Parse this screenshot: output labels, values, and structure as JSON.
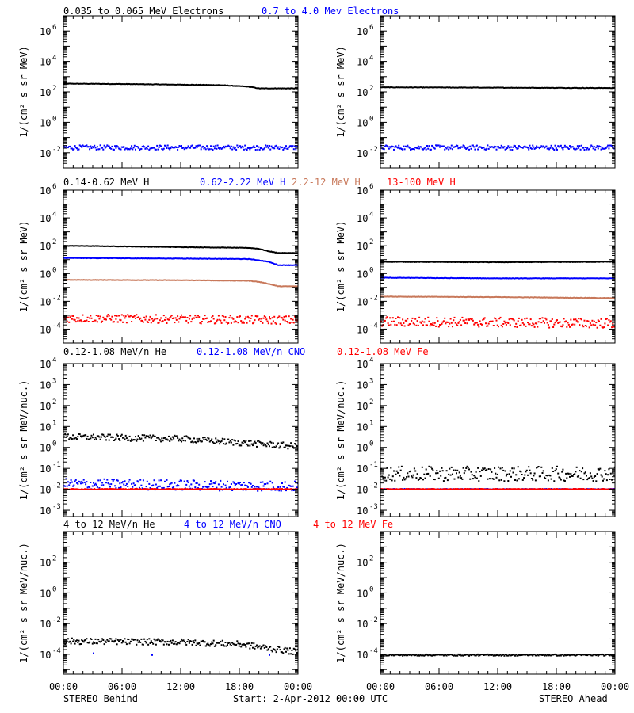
{
  "colors": {
    "black": "#000000",
    "blue": "#0000ff",
    "sienna": "#c8785a",
    "red": "#ff0000"
  },
  "footer": {
    "left": "STEREO Behind",
    "center": "Start:  2-Apr-2012 00:00 UTC",
    "right": "STEREO Ahead"
  },
  "x_tick_labels": [
    "00:00",
    "06:00",
    "12:00",
    "18:00",
    "00:00"
  ],
  "chart_data": [
    {
      "type": "scatter",
      "row": 0,
      "title_parts": [
        {
          "text": "0.035 to 0.065 MeV Electrons",
          "color": "black"
        },
        {
          "text": "0.7 to 4.0 Mev Electrons",
          "color": "blue"
        }
      ],
      "ylabel": "1/(cm² s sr MeV)",
      "yscale": "log",
      "ylim": [
        0.001,
        10000000
      ],
      "y_ticks": [
        {
          "value": 0.01,
          "label": "10",
          "exp": "-2"
        },
        {
          "value": 1,
          "label": "10",
          "exp": "0"
        },
        {
          "value": 100,
          "label": "10",
          "exp": "2"
        },
        {
          "value": 10000,
          "label": "10",
          "exp": "4"
        },
        {
          "value": 1000000,
          "label": "10",
          "exp": "6"
        }
      ],
      "xlim_hours": [
        0,
        24
      ],
      "panels": [
        {
          "name": "STEREO Behind",
          "series": [
            {
              "color": "black",
              "style": "line",
              "x": [
                0,
                6,
                12,
                16,
                19,
                20,
                24
              ],
              "y": [
                350,
                330,
                300,
                280,
                220,
                170,
                170
              ]
            },
            {
              "color": "blue",
              "style": "scatter",
              "x": [
                0,
                24
              ],
              "y": [
                0.025,
                0.025
              ],
              "scatter_dex": 0.15
            }
          ]
        },
        {
          "name": "STEREO Ahead",
          "series": [
            {
              "color": "black",
              "style": "line",
              "x": [
                0,
                12,
                24
              ],
              "y": [
                200,
                190,
                180
              ]
            },
            {
              "color": "blue",
              "style": "scatter",
              "x": [
                0,
                24
              ],
              "y": [
                0.025,
                0.025
              ],
              "scatter_dex": 0.15
            }
          ]
        }
      ]
    },
    {
      "type": "scatter",
      "row": 1,
      "title_parts": [
        {
          "text": "0.14-0.62 MeV H",
          "color": "black"
        },
        {
          "text": "0.62-2.22 MeV H",
          "color": "blue"
        },
        {
          "text": "2.2-12 MeV H",
          "color": "sienna"
        },
        {
          "text": "13-100 MeV H",
          "color": "red"
        }
      ],
      "ylabel": "1/(cm² s sr MeV)",
      "yscale": "log",
      "ylim": [
        1e-05,
        1000000
      ],
      "y_ticks": [
        {
          "value": 0.0001,
          "label": "10",
          "exp": "-4"
        },
        {
          "value": 0.01,
          "label": "10",
          "exp": "-2"
        },
        {
          "value": 1,
          "label": "10",
          "exp": "0"
        },
        {
          "value": 100,
          "label": "10",
          "exp": "2"
        },
        {
          "value": 10000,
          "label": "10",
          "exp": "4"
        },
        {
          "value": 1000000,
          "label": "10",
          "exp": "6"
        }
      ],
      "xlim_hours": [
        0,
        24
      ],
      "panels": [
        {
          "name": "STEREO Behind",
          "series": [
            {
              "color": "black",
              "style": "line",
              "x": [
                0,
                6,
                12,
                19,
                20,
                21,
                22,
                24
              ],
              "y": [
                100,
                90,
                80,
                70,
                60,
                40,
                30,
                30
              ]
            },
            {
              "color": "blue",
              "style": "line",
              "x": [
                0,
                12,
                19,
                20,
                21,
                22,
                24
              ],
              "y": [
                13,
                12,
                11,
                9,
                7,
                4,
                4
              ]
            },
            {
              "color": "sienna",
              "style": "line",
              "x": [
                0,
                12,
                19,
                20,
                21,
                22,
                24
              ],
              "y": [
                0.35,
                0.33,
                0.3,
                0.25,
                0.18,
                0.12,
                0.12
              ]
            },
            {
              "color": "red",
              "style": "scatter",
              "x": [
                0,
                24
              ],
              "y": [
                0.0007,
                0.0005
              ],
              "scatter_dex": 0.3
            }
          ]
        },
        {
          "name": "STEREO Ahead",
          "series": [
            {
              "color": "black",
              "style": "line",
              "x": [
                0,
                12,
                24
              ],
              "y": [
                7,
                6.5,
                7
              ]
            },
            {
              "color": "blue",
              "style": "line",
              "x": [
                0,
                12,
                24
              ],
              "y": [
                0.5,
                0.45,
                0.45
              ]
            },
            {
              "color": "sienna",
              "style": "line",
              "x": [
                0,
                12,
                24
              ],
              "y": [
                0.022,
                0.02,
                0.017
              ]
            },
            {
              "color": "red",
              "style": "scatter",
              "x": [
                0,
                24
              ],
              "y": [
                0.0004,
                0.0003
              ],
              "scatter_dex": 0.35
            }
          ]
        }
      ]
    },
    {
      "type": "scatter",
      "row": 2,
      "title_parts": [
        {
          "text": "0.12-1.08 MeV/n He",
          "color": "black"
        },
        {
          "text": "0.12-1.08 MeV/n CNO",
          "color": "blue"
        },
        {
          "text": "0.12-1.08 MeV Fe",
          "color": "red"
        }
      ],
      "ylabel": "1/(cm² s sr MeV/nuc.)",
      "yscale": "log",
      "ylim": [
        0.0005,
        10000
      ],
      "y_ticks": [
        {
          "value": 0.001,
          "label": "10",
          "exp": "-3"
        },
        {
          "value": 0.01,
          "label": "10",
          "exp": "-2"
        },
        {
          "value": 0.1,
          "label": "10",
          "exp": "-1"
        },
        {
          "value": 1,
          "label": "10",
          "exp": "0"
        },
        {
          "value": 10,
          "label": "10",
          "exp": "1"
        },
        {
          "value": 100,
          "label": "10",
          "exp": "2"
        },
        {
          "value": 1000,
          "label": "10",
          "exp": "3"
        },
        {
          "value": 10000,
          "label": "10",
          "exp": "4"
        }
      ],
      "xlim_hours": [
        0,
        24
      ],
      "panels": [
        {
          "name": "STEREO Behind",
          "series": [
            {
              "color": "black",
              "style": "scatter",
              "x": [
                0,
                12,
                24
              ],
              "y": [
                3.5,
                2.8,
                1.2
              ],
              "scatter_dex": 0.15
            },
            {
              "color": "blue",
              "style": "scatter",
              "x": [
                0,
                24
              ],
              "y": [
                0.02,
                0.015
              ],
              "scatter_dex": 0.25
            },
            {
              "color": "red",
              "style": "scatter",
              "x": [
                0,
                24
              ],
              "y": [
                0.011,
                0.011
              ],
              "scatter_dex": 0.02
            }
          ]
        },
        {
          "name": "STEREO Ahead",
          "series": [
            {
              "color": "black",
              "style": "scatter",
              "x": [
                0,
                24
              ],
              "y": [
                0.06,
                0.06
              ],
              "scatter_dex": 0.35
            },
            {
              "color": "blue",
              "style": "scatter",
              "x": [
                0,
                24
              ],
              "y": [
                0.011,
                0.011
              ],
              "scatter_dex": 0.02
            },
            {
              "color": "red",
              "style": "scatter",
              "x": [
                0,
                24
              ],
              "y": [
                0.011,
                0.011
              ],
              "scatter_dex": 0.02
            }
          ]
        }
      ]
    },
    {
      "type": "scatter",
      "row": 3,
      "title_parts": [
        {
          "text": "4 to 12 MeV/n He",
          "color": "black"
        },
        {
          "text": "4 to 12 MeV/n CNO",
          "color": "blue"
        },
        {
          "text": "4 to 12 MeV Fe",
          "color": "red"
        }
      ],
      "ylabel": "1/(cm² s sr MeV/nuc.)",
      "yscale": "log",
      "ylim": [
        5e-06,
        10000
      ],
      "y_ticks": [
        {
          "value": 0.0001,
          "label": "10",
          "exp": "-4"
        },
        {
          "value": 0.01,
          "label": "10",
          "exp": "-2"
        },
        {
          "value": 1,
          "label": "10",
          "exp": "0"
        },
        {
          "value": 100,
          "label": "10",
          "exp": "2"
        }
      ],
      "xlim_hours": [
        0,
        24
      ],
      "panels": [
        {
          "name": "STEREO Behind",
          "series": [
            {
              "color": "black",
              "style": "scatter",
              "x": [
                0,
                12,
                18,
                24
              ],
              "y": [
                0.0008,
                0.0007,
                0.0005,
                0.00015
              ],
              "scatter_dex": 0.2
            },
            {
              "color": "blue",
              "style": "sparse",
              "x": [
                3,
                9,
                21
              ],
              "y": [
                0.00013,
                0.0001,
                0.0001
              ]
            }
          ]
        },
        {
          "name": "STEREO Ahead",
          "series": [
            {
              "color": "black",
              "style": "scatter",
              "x": [
                0,
                24
              ],
              "y": [
                0.0001,
                0.0001
              ],
              "scatter_dex": 0.05
            }
          ]
        }
      ]
    }
  ]
}
